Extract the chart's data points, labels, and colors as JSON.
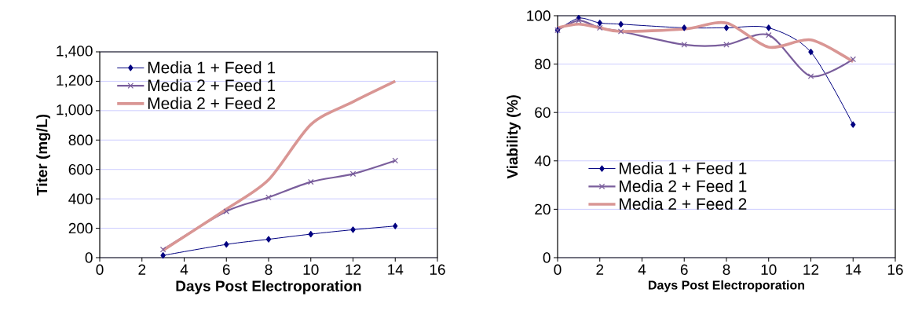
{
  "chart_data": [
    {
      "type": "line",
      "xlabel": "Days Post Electroporation",
      "ylabel": "Titer (mg/L)",
      "xlim": [
        0,
        16
      ],
      "xticks": [
        0,
        2,
        4,
        6,
        8,
        10,
        12,
        14,
        16
      ],
      "ylim": [
        0,
        1400
      ],
      "yticks": [
        0,
        200,
        400,
        600,
        800,
        {
          "value": 1000,
          "label": "1,000"
        },
        {
          "value": 1200,
          "label": "1,200"
        },
        {
          "value": 1400,
          "label": "1,400"
        }
      ],
      "grid": "y",
      "legend": "top left",
      "line_style": "solid",
      "series": [
        {
          "name": "Media 1 + Feed 1",
          "color": "#000080",
          "marker": "diamond",
          "x": [
            3,
            6,
            8,
            10,
            12,
            14
          ],
          "values": [
            15,
            90,
            125,
            160,
            190,
            215
          ]
        },
        {
          "name": "Media 2 + Feed 1",
          "color": "#7a5e9c",
          "marker": "cross",
          "x": [
            3,
            6,
            8,
            10,
            12,
            14
          ],
          "values": [
            55,
            315,
            410,
            515,
            570,
            660
          ]
        },
        {
          "name": "Media 2 + Feed 2",
          "color": "#d99694",
          "marker": "none",
          "x": [
            3,
            6,
            8,
            10,
            12,
            14
          ],
          "values": [
            50,
            330,
            530,
            905,
            1060,
            1200
          ]
        }
      ]
    },
    {
      "type": "line",
      "xlabel": "Days Post Electroporation",
      "ylabel": "Viability (%)",
      "xlim": [
        0,
        16
      ],
      "xticks": [
        0,
        2,
        4,
        6,
        8,
        10,
        12,
        14,
        16
      ],
      "ylim": [
        0,
        100
      ],
      "yticks": [
        0,
        20,
        40,
        60,
        80,
        100
      ],
      "grid": "y",
      "legend": "bottom left",
      "line_style": "solid",
      "series": [
        {
          "name": "Media 1 + Feed 1",
          "color": "#000080",
          "marker": "diamond",
          "x": [
            0,
            1,
            2,
            3,
            6,
            8,
            10,
            12,
            14
          ],
          "values": [
            94,
            99,
            97,
            96.5,
            95,
            95,
            95,
            85,
            55
          ]
        },
        {
          "name": "Media 2 + Feed 1",
          "color": "#7a5e9c",
          "marker": "cross",
          "x": [
            0,
            1,
            2,
            3,
            6,
            8,
            10,
            12,
            14
          ],
          "values": [
            94,
            98,
            95,
            93.5,
            88,
            88,
            92,
            75,
            82
          ]
        },
        {
          "name": "Media 2 + Feed 2",
          "color": "#d99694",
          "marker": "none",
          "x": [
            0,
            1,
            2,
            3,
            6,
            8,
            10,
            12,
            14
          ],
          "values": [
            95,
            96.5,
            95,
            93.5,
            94.5,
            97,
            87,
            90,
            81
          ]
        }
      ]
    }
  ]
}
